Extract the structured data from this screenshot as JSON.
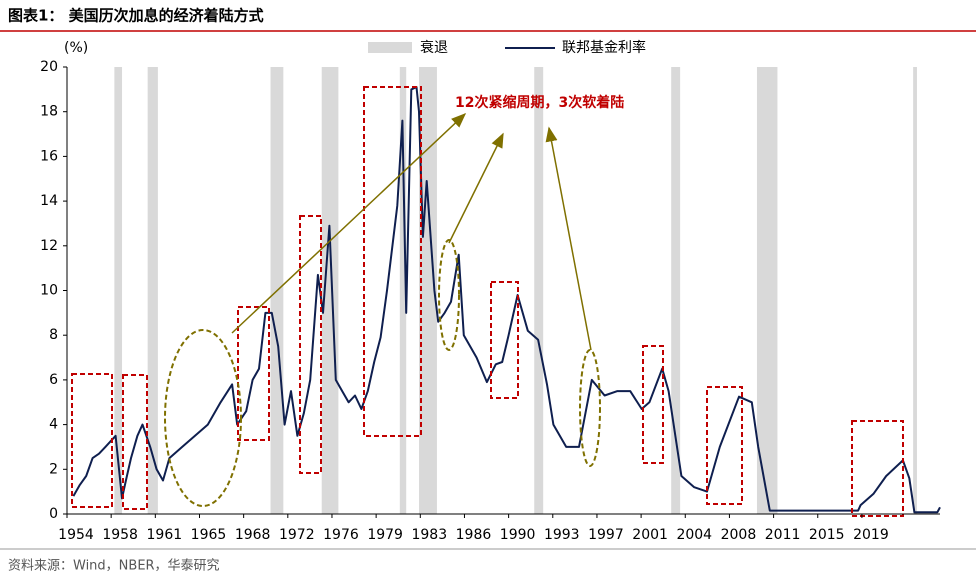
{
  "title": "图表1： 美国历次加息的经济着陆方式",
  "source": "资料来源：Wind，NBER，华泰研究",
  "chart_data": {
    "type": "line",
    "ylabel": "(%)",
    "annotation": "12次紧缩周期，3次软着陆",
    "recession_label": "衰退",
    "recession_color": "#d9d9d9",
    "recessions": [
      [
        1957.7,
        1958.3
      ],
      [
        1960.3,
        1961.1
      ],
      [
        1969.9,
        1970.9
      ],
      [
        1973.9,
        1975.2
      ],
      [
        1980.0,
        1980.5
      ],
      [
        1981.5,
        1982.9
      ],
      [
        1990.5,
        1991.2
      ],
      [
        2001.2,
        2001.9
      ],
      [
        2007.9,
        2009.5
      ],
      [
        2020.1,
        2020.4
      ]
    ],
    "series": [
      {
        "name": "联邦基金利率",
        "color": "#0f1f4f",
        "x": [
          1954.5,
          1955,
          1955.5,
          1956,
          1956.5,
          1957,
          1957.8,
          1958.3,
          1958.6,
          1959,
          1959.5,
          1959.9,
          1960.5,
          1961,
          1961.5,
          1962,
          1963,
          1964,
          1965,
          1966,
          1966.9,
          1967.3,
          1968,
          1968.5,
          1969,
          1969.5,
          1970,
          1970.5,
          1971,
          1971.5,
          1972,
          1972.5,
          1973,
          1973.6,
          1974,
          1974.5,
          1975,
          1975.5,
          1976,
          1976.5,
          1977,
          1977.5,
          1978,
          1978.5,
          1979,
          1979.8,
          1980.2,
          1980.5,
          1980.9,
          1981.3,
          1981.5,
          1981.8,
          1982.1,
          1982.7,
          1983,
          1983.5,
          1984,
          1984.6,
          1985,
          1986,
          1986.8,
          1987.5,
          1988,
          1988.5,
          1989.2,
          1990,
          1990.8,
          1991.5,
          1992,
          1993,
          1994,
          1995,
          1996,
          1997,
          1998,
          1998.9,
          1999.5,
          2000.5,
          2001,
          2002,
          2003,
          2004,
          2005,
          2006.5,
          2007.5,
          2008,
          2008.9,
          2012,
          2015.8,
          2016,
          2017,
          2018,
          2019.3,
          2019.8,
          2020.2,
          2022,
          2022.2
        ],
        "values": [
          0.8,
          1.3,
          1.7,
          2.5,
          2.7,
          3.0,
          3.5,
          0.7,
          1.5,
          2.5,
          3.5,
          4.0,
          3.0,
          2.0,
          1.5,
          2.5,
          3.0,
          3.5,
          4.0,
          5.0,
          5.8,
          4.0,
          4.6,
          6.0,
          6.5,
          9.0,
          9.0,
          7.5,
          4.0,
          5.5,
          3.5,
          4.5,
          6.0,
          10.7,
          9.0,
          12.9,
          6.0,
          5.5,
          5.0,
          5.3,
          4.7,
          5.5,
          6.8,
          7.9,
          10.0,
          13.8,
          17.6,
          9.0,
          19.0,
          19.1,
          18.0,
          12.4,
          14.9,
          10.0,
          8.6,
          9.0,
          9.5,
          11.6,
          8.0,
          7.0,
          5.9,
          6.7,
          6.8,
          8.0,
          9.8,
          8.2,
          7.8,
          5.8,
          4.0,
          3.0,
          3.0,
          6.0,
          5.3,
          5.5,
          5.5,
          4.7,
          5.0,
          6.5,
          5.5,
          1.7,
          1.2,
          1.0,
          3.0,
          5.25,
          5.0,
          3.0,
          0.15,
          0.15,
          0.15,
          0.4,
          0.9,
          1.7,
          2.4,
          1.6,
          0.08,
          0.08,
          0.3
        ]
      }
    ],
    "xlim": [
      1954,
      2022.2
    ],
    "xticks": [
      {
        "value": 1954,
        "label": "1954"
      },
      {
        "value": 1957.45,
        "label": "1958"
      },
      {
        "value": 1960.9,
        "label": "1961"
      },
      {
        "value": 1964.35,
        "label": "1965"
      },
      {
        "value": 1967.8,
        "label": "1968"
      },
      {
        "value": 1971.25,
        "label": "1972"
      },
      {
        "value": 1974.7,
        "label": "1976"
      },
      {
        "value": 1978.15,
        "label": "1979"
      },
      {
        "value": 1981.6,
        "label": "1983"
      },
      {
        "value": 1985.05,
        "label": "1986"
      },
      {
        "value": 1988.5,
        "label": "1990"
      },
      {
        "value": 1991.95,
        "label": "1993"
      },
      {
        "value": 1995.4,
        "label": "1997"
      },
      {
        "value": 1998.85,
        "label": "2001"
      },
      {
        "value": 2002.3,
        "label": "2004"
      },
      {
        "value": 2005.75,
        "label": "2008"
      },
      {
        "value": 2009.2,
        "label": "2011"
      },
      {
        "value": 2012.65,
        "label": "2015"
      },
      {
        "value": 2016.1,
        "label": "2019"
      }
    ],
    "ylim": [
      0,
      20
    ],
    "yticks": [
      0,
      2,
      4,
      6,
      8,
      10,
      12,
      14,
      16,
      18,
      20
    ],
    "grid": false
  }
}
